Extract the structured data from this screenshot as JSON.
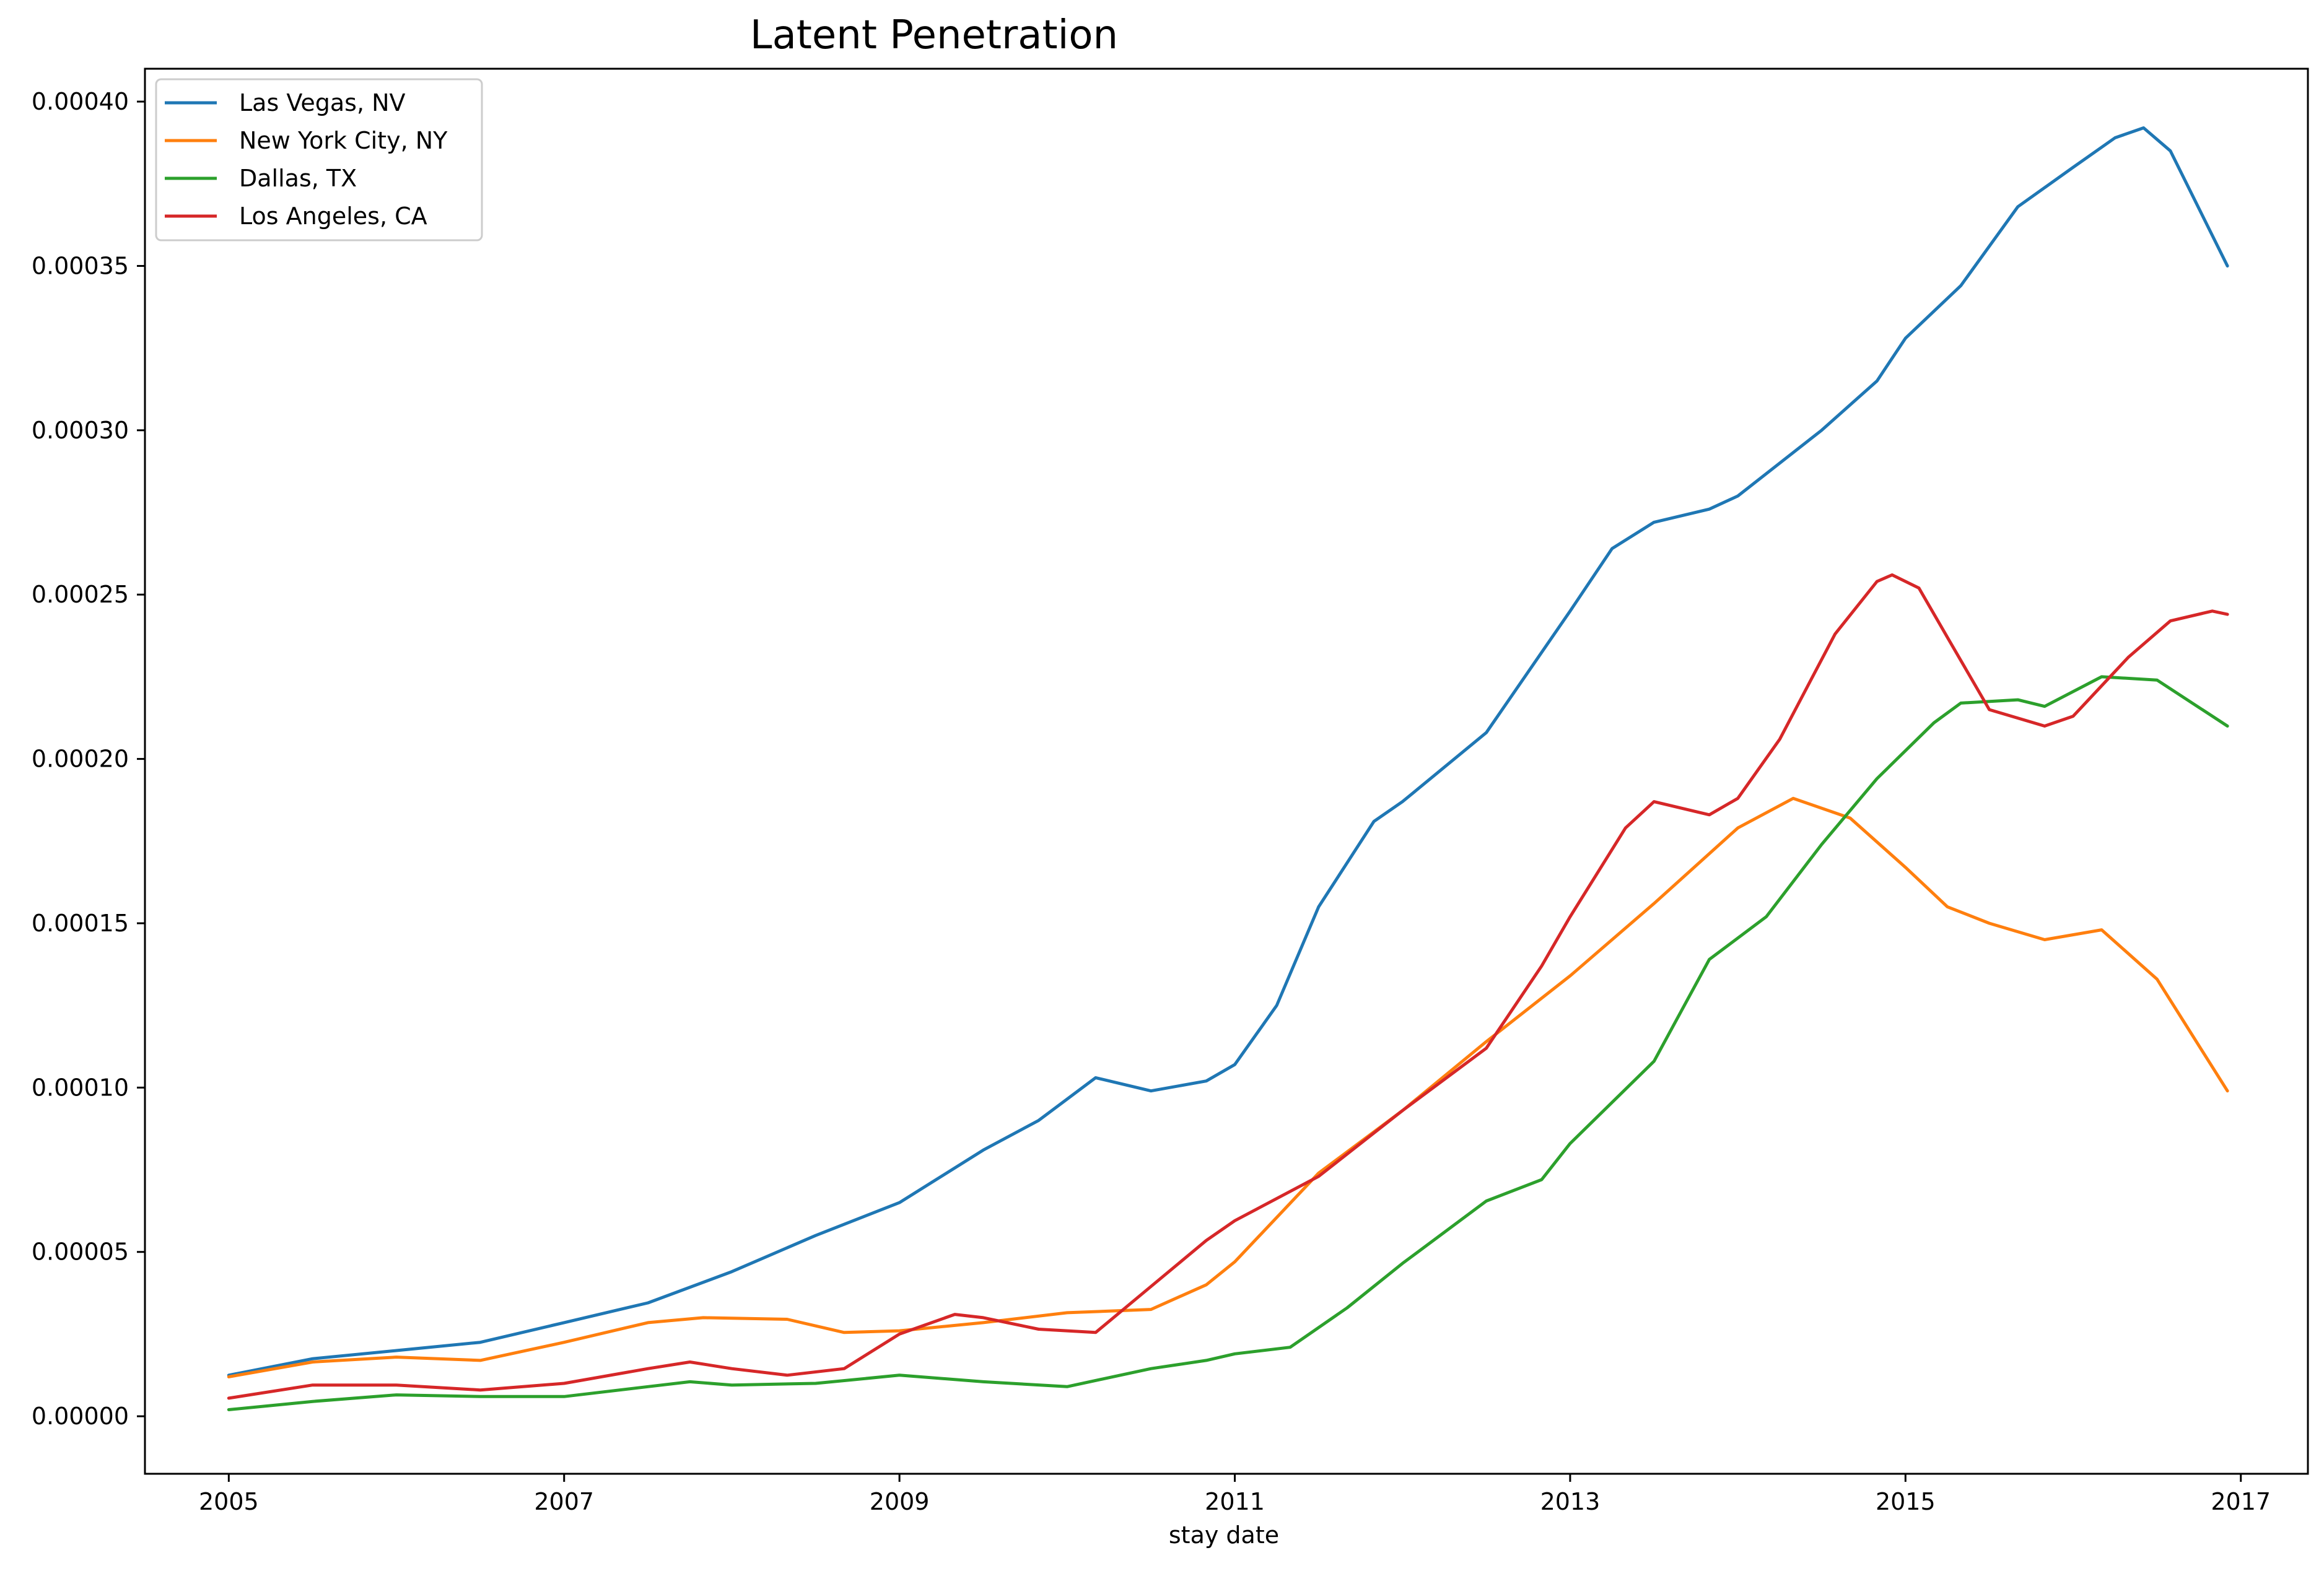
{
  "chart_data": {
    "type": "line",
    "title": "Latent Penetration",
    "xlabel": "stay date",
    "ylabel": "",
    "xlim": [
      2004.5,
      2017.4
    ],
    "ylim": [
      -1.75e-05,
      0.00041
    ],
    "x_ticks": [
      2005,
      2007,
      2009,
      2011,
      2013,
      2015,
      2017
    ],
    "x_tick_labels": [
      "2005",
      "2007",
      "2009",
      "2011",
      "2013",
      "2015",
      "2017"
    ],
    "y_ticks": [
      0,
      5e-05,
      0.0001,
      0.00015,
      0.0002,
      0.00025,
      0.0003,
      0.00035,
      0.0004
    ],
    "y_tick_labels": [
      "0.00000",
      "0.00005",
      "0.00010",
      "0.00015",
      "0.00020",
      "0.00025",
      "0.00030",
      "0.00035",
      "0.00040"
    ],
    "grid": false,
    "legend_position": "upper-left",
    "series": [
      {
        "name": "Las Vegas, NV",
        "color": "#1f77b4",
        "points": [
          [
            2005.0,
            1.25e-05
          ],
          [
            2005.5,
            1.75e-05
          ],
          [
            2006.0,
            2e-05
          ],
          [
            2006.5,
            2.25e-05
          ],
          [
            2007.0,
            2.85e-05
          ],
          [
            2007.5,
            3.45e-05
          ],
          [
            2008.0,
            4.4e-05
          ],
          [
            2008.5,
            5.5e-05
          ],
          [
            2009.0,
            6.5e-05
          ],
          [
            2009.5,
            8.1e-05
          ],
          [
            2009.83,
            9e-05
          ],
          [
            2010.17,
            0.000103
          ],
          [
            2010.5,
            9.9e-05
          ],
          [
            2010.83,
            0.000102
          ],
          [
            2011.0,
            0.000107
          ],
          [
            2011.25,
            0.000125
          ],
          [
            2011.5,
            0.000155
          ],
          [
            2011.83,
            0.000181
          ],
          [
            2012.0,
            0.000187
          ],
          [
            2012.5,
            0.000208
          ],
          [
            2013.0,
            0.000245
          ],
          [
            2013.25,
            0.000264
          ],
          [
            2013.5,
            0.000272
          ],
          [
            2013.83,
            0.000276
          ],
          [
            2014.0,
            0.00028
          ],
          [
            2014.5,
            0.0003
          ],
          [
            2014.83,
            0.000315
          ],
          [
            2015.0,
            0.000328
          ],
          [
            2015.33,
            0.000344
          ],
          [
            2015.67,
            0.000368
          ],
          [
            2016.0,
            0.00038
          ],
          [
            2016.25,
            0.000389
          ],
          [
            2016.42,
            0.000392
          ],
          [
            2016.58,
            0.000385
          ],
          [
            2016.92,
            0.00035
          ]
        ]
      },
      {
        "name": "New York City, NY",
        "color": "#ff7f0e",
        "points": [
          [
            2005.0,
            1.2e-05
          ],
          [
            2005.5,
            1.65e-05
          ],
          [
            2006.0,
            1.8e-05
          ],
          [
            2006.5,
            1.7e-05
          ],
          [
            2007.0,
            2.25e-05
          ],
          [
            2007.5,
            2.85e-05
          ],
          [
            2007.83,
            3e-05
          ],
          [
            2008.33,
            2.95e-05
          ],
          [
            2008.67,
            2.55e-05
          ],
          [
            2009.0,
            2.6e-05
          ],
          [
            2009.5,
            2.85e-05
          ],
          [
            2010.0,
            3.15e-05
          ],
          [
            2010.5,
            3.25e-05
          ],
          [
            2010.83,
            4e-05
          ],
          [
            2011.0,
            4.7e-05
          ],
          [
            2011.5,
            7.4e-05
          ],
          [
            2012.0,
            9.3e-05
          ],
          [
            2012.5,
            0.000114
          ],
          [
            2013.0,
            0.000134
          ],
          [
            2013.5,
            0.000156
          ],
          [
            2014.0,
            0.000179
          ],
          [
            2014.33,
            0.000188
          ],
          [
            2014.67,
            0.000182
          ],
          [
            2015.0,
            0.000167
          ],
          [
            2015.25,
            0.000155
          ],
          [
            2015.5,
            0.00015
          ],
          [
            2015.83,
            0.000145
          ],
          [
            2016.17,
            0.000148
          ],
          [
            2016.5,
            0.000133
          ],
          [
            2016.92,
            9.9e-05
          ]
        ]
      },
      {
        "name": "Dallas, TX",
        "color": "#2ca02c",
        "points": [
          [
            2005.0,
            2e-06
          ],
          [
            2005.5,
            4.5e-06
          ],
          [
            2006.0,
            6.5e-06
          ],
          [
            2006.5,
            6e-06
          ],
          [
            2007.0,
            6e-06
          ],
          [
            2007.5,
            9e-06
          ],
          [
            2007.75,
            1.05e-05
          ],
          [
            2008.0,
            9.5e-06
          ],
          [
            2008.5,
            1e-05
          ],
          [
            2009.0,
            1.25e-05
          ],
          [
            2009.5,
            1.05e-05
          ],
          [
            2010.0,
            9e-06
          ],
          [
            2010.5,
            1.45e-05
          ],
          [
            2010.83,
            1.7e-05
          ],
          [
            2011.0,
            1.9e-05
          ],
          [
            2011.33,
            2.1e-05
          ],
          [
            2011.67,
            3.3e-05
          ],
          [
            2012.0,
            4.65e-05
          ],
          [
            2012.5,
            6.55e-05
          ],
          [
            2012.83,
            7.2e-05
          ],
          [
            2013.0,
            8.3e-05
          ],
          [
            2013.5,
            0.000108
          ],
          [
            2013.83,
            0.000139
          ],
          [
            2014.17,
            0.000152
          ],
          [
            2014.5,
            0.000174
          ],
          [
            2014.83,
            0.000194
          ],
          [
            2015.17,
            0.000211
          ],
          [
            2015.33,
            0.000217
          ],
          [
            2015.67,
            0.000218
          ],
          [
            2015.83,
            0.000216
          ],
          [
            2016.17,
            0.000225
          ],
          [
            2016.5,
            0.000224
          ],
          [
            2016.92,
            0.00021
          ]
        ]
      },
      {
        "name": "Los Angeles, CA",
        "color": "#d62728",
        "points": [
          [
            2005.0,
            5.5e-06
          ],
          [
            2005.5,
            9.5e-06
          ],
          [
            2006.0,
            9.5e-06
          ],
          [
            2006.5,
            8e-06
          ],
          [
            2007.0,
            1e-05
          ],
          [
            2007.5,
            1.45e-05
          ],
          [
            2007.75,
            1.65e-05
          ],
          [
            2008.0,
            1.45e-05
          ],
          [
            2008.33,
            1.25e-05
          ],
          [
            2008.67,
            1.45e-05
          ],
          [
            2009.0,
            2.5e-05
          ],
          [
            2009.33,
            3.1e-05
          ],
          [
            2009.5,
            3e-05
          ],
          [
            2009.83,
            2.65e-05
          ],
          [
            2010.17,
            2.55e-05
          ],
          [
            2010.5,
            3.95e-05
          ],
          [
            2010.83,
            5.35e-05
          ],
          [
            2011.0,
            5.95e-05
          ],
          [
            2011.5,
            7.3e-05
          ],
          [
            2012.0,
            9.3e-05
          ],
          [
            2012.5,
            0.000112
          ],
          [
            2012.83,
            0.000137
          ],
          [
            2013.0,
            0.000152
          ],
          [
            2013.33,
            0.000179
          ],
          [
            2013.5,
            0.000187
          ],
          [
            2013.83,
            0.000183
          ],
          [
            2014.0,
            0.000188
          ],
          [
            2014.25,
            0.000206
          ],
          [
            2014.58,
            0.000238
          ],
          [
            2014.83,
            0.000254
          ],
          [
            2014.92,
            0.000256
          ],
          [
            2015.08,
            0.000252
          ],
          [
            2015.25,
            0.000237
          ],
          [
            2015.5,
            0.000215
          ],
          [
            2015.83,
            0.00021
          ],
          [
            2016.0,
            0.000213
          ],
          [
            2016.33,
            0.000231
          ],
          [
            2016.58,
            0.000242
          ],
          [
            2016.83,
            0.000245
          ],
          [
            2016.92,
            0.000244
          ]
        ]
      }
    ]
  }
}
